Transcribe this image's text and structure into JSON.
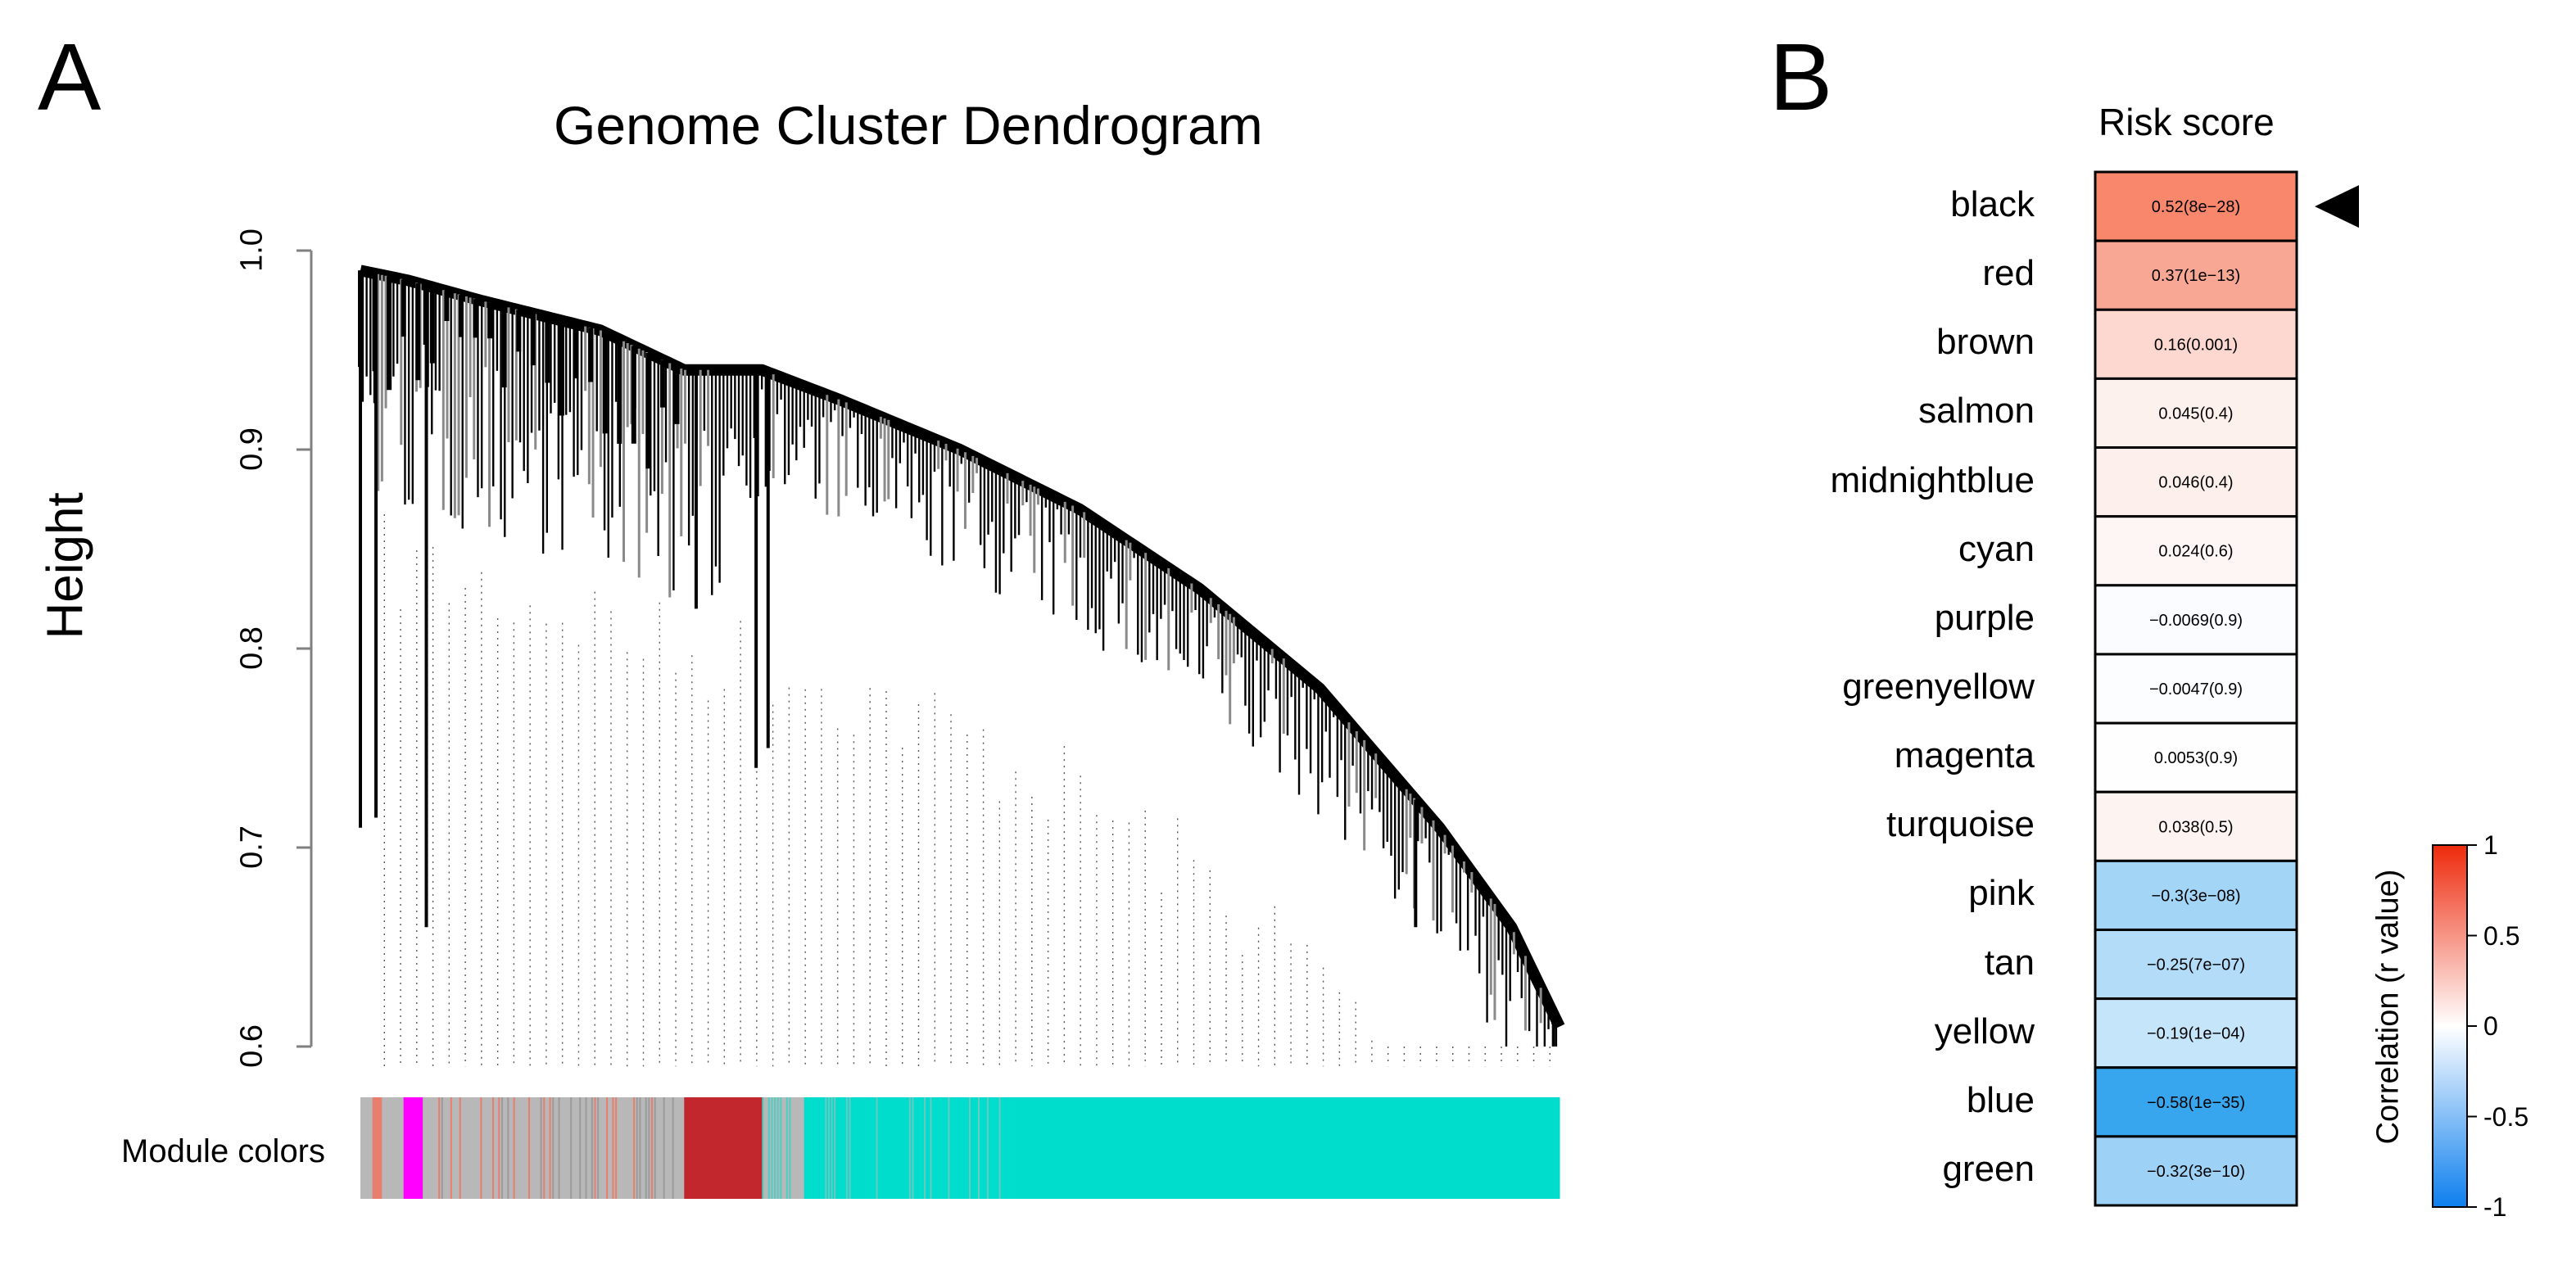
{
  "figure": {
    "panel_a_letter": "A",
    "panel_b_letter": "B"
  },
  "chart_data": [
    {
      "type": "dendrogram",
      "title": "Genome Cluster Dendrogram",
      "ylabel": "Height",
      "ylim": [
        0.6,
        1.0
      ],
      "yticks": [
        {
          "value": 0.6,
          "label": "0.6"
        },
        {
          "value": 0.7,
          "label": "0.7"
        },
        {
          "value": 0.8,
          "label": "0.8"
        },
        {
          "value": 0.9,
          "label": "0.9"
        },
        {
          "value": 1.0,
          "label": "1.0"
        }
      ],
      "module_colors_label": "Module colors",
      "module_color_segments": [
        {
          "module": "grey",
          "color": "#b8b8b8",
          "start": 0.0,
          "end": 0.01
        },
        {
          "module": "salmon",
          "color": "#e87e6e",
          "start": 0.01,
          "end": 0.018
        },
        {
          "module": "grey",
          "color": "#b8b8b8",
          "start": 0.018,
          "end": 0.036
        },
        {
          "module": "magenta",
          "color": "#ff00ff",
          "start": 0.036,
          "end": 0.052
        },
        {
          "module": "grey",
          "color": "#b8b8b8",
          "start": 0.052,
          "end": 0.27
        },
        {
          "module": "red",
          "color": "#c1272d",
          "start": 0.27,
          "end": 0.335
        },
        {
          "module": "grey",
          "color": "#b8b8b8",
          "start": 0.335,
          "end": 0.37
        },
        {
          "module": "turquoise",
          "color": "#00ddcc",
          "start": 0.37,
          "end": 1.0
        }
      ],
      "envelope": [
        {
          "pos": 0.0,
          "height": 0.99
        },
        {
          "pos": 0.04,
          "height": 0.985
        },
        {
          "pos": 0.1,
          "height": 0.975
        },
        {
          "pos": 0.2,
          "height": 0.96
        },
        {
          "pos": 0.27,
          "height": 0.94
        },
        {
          "pos": 0.335,
          "height": 0.94
        },
        {
          "pos": 0.4,
          "height": 0.925
        },
        {
          "pos": 0.5,
          "height": 0.9
        },
        {
          "pos": 0.6,
          "height": 0.87
        },
        {
          "pos": 0.7,
          "height": 0.83
        },
        {
          "pos": 0.8,
          "height": 0.78
        },
        {
          "pos": 0.9,
          "height": 0.71
        },
        {
          "pos": 0.96,
          "height": 0.66
        },
        {
          "pos": 1.0,
          "height": 0.61
        }
      ]
    },
    {
      "type": "heatmap",
      "column_title": "Risk score",
      "marker": "arrow at black",
      "rows": [
        {
          "module": "black",
          "r": 0.52,
          "label": "0.52(8e−28)",
          "color": "#f8876c"
        },
        {
          "module": "red",
          "r": 0.37,
          "label": "0.37(1e−13)",
          "color": "#f9a795"
        },
        {
          "module": "brown",
          "r": 0.16,
          "label": "0.16(0.001)",
          "color": "#fcd8d1"
        },
        {
          "module": "salmon",
          "r": 0.045,
          "label": "0.045(0.4)",
          "color": "#fdf1ee"
        },
        {
          "module": "midnightblue",
          "r": 0.046,
          "label": "0.046(0.4)",
          "color": "#fdf0ec"
        },
        {
          "module": "cyan",
          "r": 0.024,
          "label": "0.024(0.6)",
          "color": "#fef6f4"
        },
        {
          "module": "purple",
          "r": -0.0069,
          "label": "−0.0069(0.9)",
          "color": "#fafcff"
        },
        {
          "module": "greenyellow",
          "r": -0.0047,
          "label": "−0.0047(0.9)",
          "color": "#fbfdff"
        },
        {
          "module": "magenta",
          "r": 0.0053,
          "label": "0.0053(0.9)",
          "color": "#fffefe"
        },
        {
          "module": "turquoise",
          "r": 0.038,
          "label": "0.038(0.5)",
          "color": "#fdf3f0"
        },
        {
          "module": "pink",
          "r": -0.3,
          "label": "−0.3(3e−08)",
          "color": "#a3d5f7"
        },
        {
          "module": "tan",
          "r": -0.25,
          "label": "−0.25(7e−07)",
          "color": "#b2dcf8"
        },
        {
          "module": "yellow",
          "r": -0.19,
          "label": "−0.19(1e−04)",
          "color": "#c5e5fa"
        },
        {
          "module": "blue",
          "r": -0.58,
          "label": "−0.58(1e−35)",
          "color": "#38a6ee"
        },
        {
          "module": "green",
          "r": -0.32,
          "label": "−0.32(3e−10)",
          "color": "#9dd2f6"
        }
      ],
      "legend": {
        "title": "Correlation (r value)",
        "range": [
          -1,
          1
        ],
        "ticks": [
          {
            "value": 1,
            "label": "1"
          },
          {
            "value": 0.5,
            "label": "0.5"
          },
          {
            "value": 0,
            "label": "0"
          },
          {
            "value": -0.5,
            "label": "-0.5"
          },
          {
            "value": -1,
            "label": "-1"
          }
        ],
        "colors": {
          "high": "#ee2a0c",
          "mid": "#ffffff",
          "low": "#0d7fee"
        }
      }
    }
  ]
}
